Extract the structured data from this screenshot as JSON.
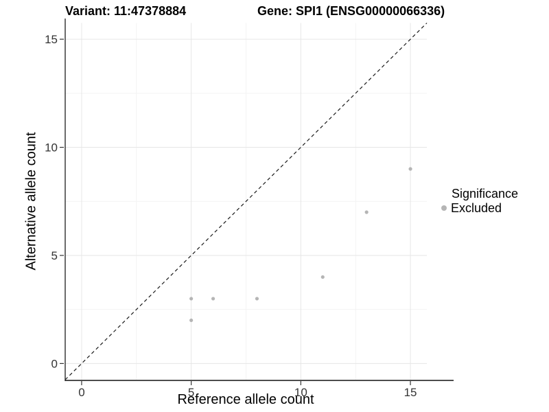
{
  "header": {
    "variant_title": "Variant: 11:47378884",
    "gene_title": "Gene: SPI1 (ENSG00000066336)"
  },
  "chart_data": {
    "type": "scatter",
    "title_left": "Variant: 11:47378884",
    "title_right": "Gene: SPI1 (ENSG00000066336)",
    "xlabel": "Reference allele count",
    "ylabel": "Alternative allele count",
    "xlim": [
      -0.75,
      15.75
    ],
    "ylim": [
      -0.75,
      15.75
    ],
    "x_ticks": [
      0,
      5,
      10,
      15
    ],
    "y_ticks": [
      0,
      5,
      10,
      15
    ],
    "x_minor_ticks": [
      2.5,
      7.5,
      12.5
    ],
    "y_minor_ticks": [
      2.5,
      7.5,
      12.5
    ],
    "grid": "major+minor",
    "series": [
      {
        "name": "Excluded",
        "color": "#b5b5b5",
        "points": [
          [
            5,
            2
          ],
          [
            5,
            3
          ],
          [
            6,
            3
          ],
          [
            8,
            3
          ],
          [
            11,
            4
          ],
          [
            13,
            7
          ],
          [
            15,
            9
          ]
        ]
      }
    ],
    "reference_line": {
      "type": "identity",
      "style": "dashed",
      "color": "#1a1a1a"
    },
    "legend": {
      "title": "Significance",
      "position": "right",
      "items": [
        {
          "label": "Excluded",
          "color": "#b5b5b5"
        }
      ]
    }
  },
  "colors": {
    "background": "#ffffff",
    "grid_major": "#e6e6e6",
    "grid_minor": "#f3f3f3",
    "axis_line": "#4d4d4d",
    "tick_label": "#333333",
    "point": "#b5b5b5"
  }
}
